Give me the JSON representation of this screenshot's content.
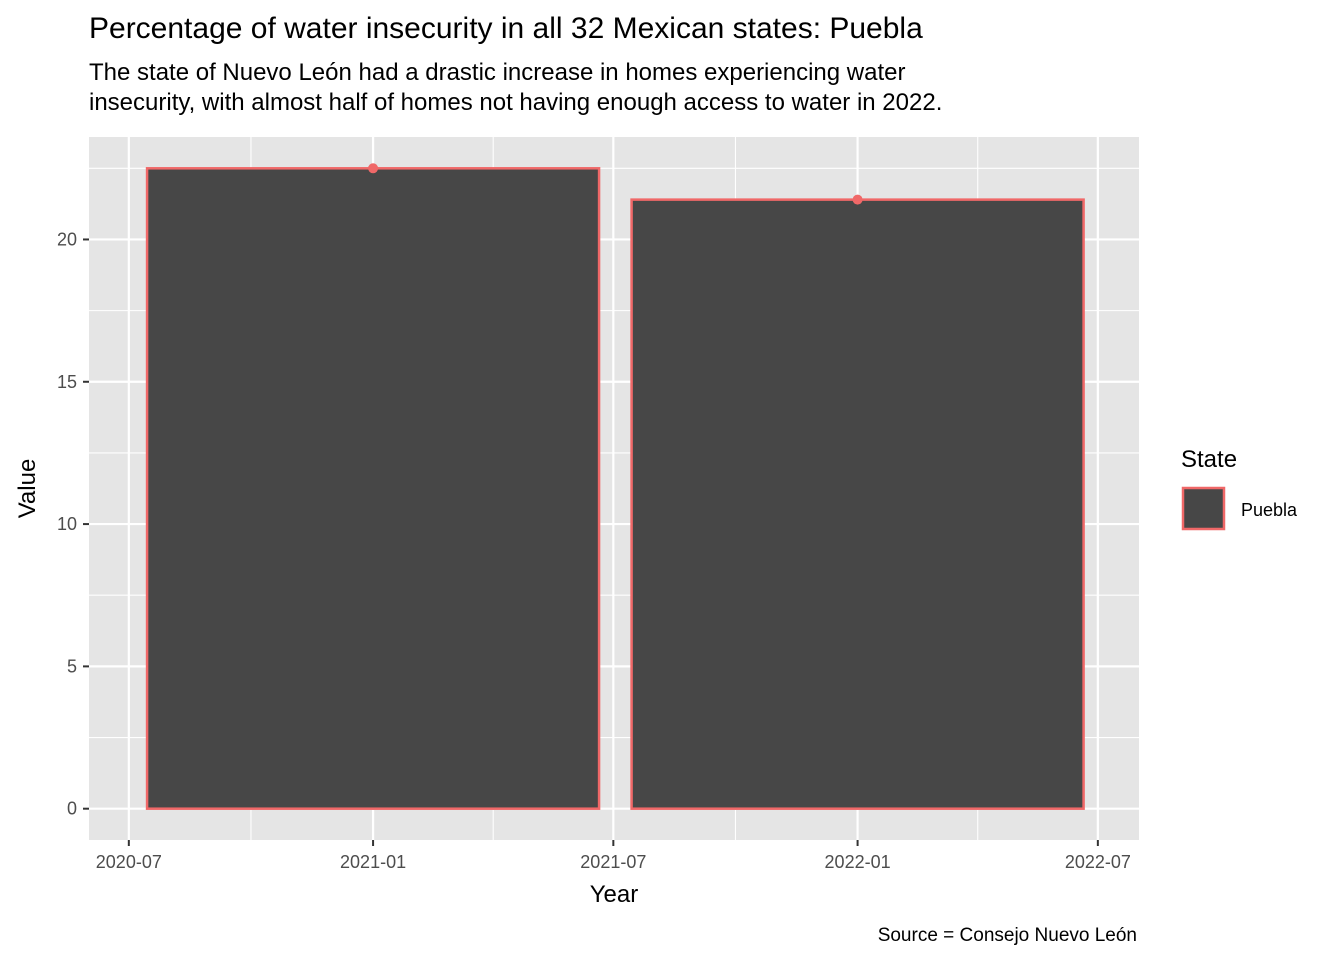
{
  "chart_data": {
    "type": "bar",
    "title": "Percentage of water insecurity in all 32 Mexican states: Puebla",
    "subtitle_lines": [
      "The state of Nuevo León had a drastic increase in homes experiencing water",
      "insecurity, with almost half of homes not having enough access to water in 2022."
    ],
    "xlabel": "Year",
    "ylabel": "Value",
    "caption": "Source = Consejo Nuevo León",
    "x_ticks": [
      "2020-07",
      "2021-01",
      "2021-07",
      "2022-01",
      "2022-07"
    ],
    "y_ticks": [
      0,
      5,
      10,
      15,
      20
    ],
    "ylim": [
      -1.1,
      23.6
    ],
    "categories": [
      "2021-01",
      "2022-01"
    ],
    "series": [
      {
        "name": "Puebla",
        "values": [
          22.5,
          21.4
        ]
      }
    ],
    "legend": {
      "title": "State",
      "position": "right"
    },
    "grid": true,
    "colors": {
      "panel": "#e5e5e5",
      "grid": "#ffffff",
      "bar_fill": "#474747",
      "bar_outline": "#f06868",
      "point": "#f06868"
    }
  }
}
